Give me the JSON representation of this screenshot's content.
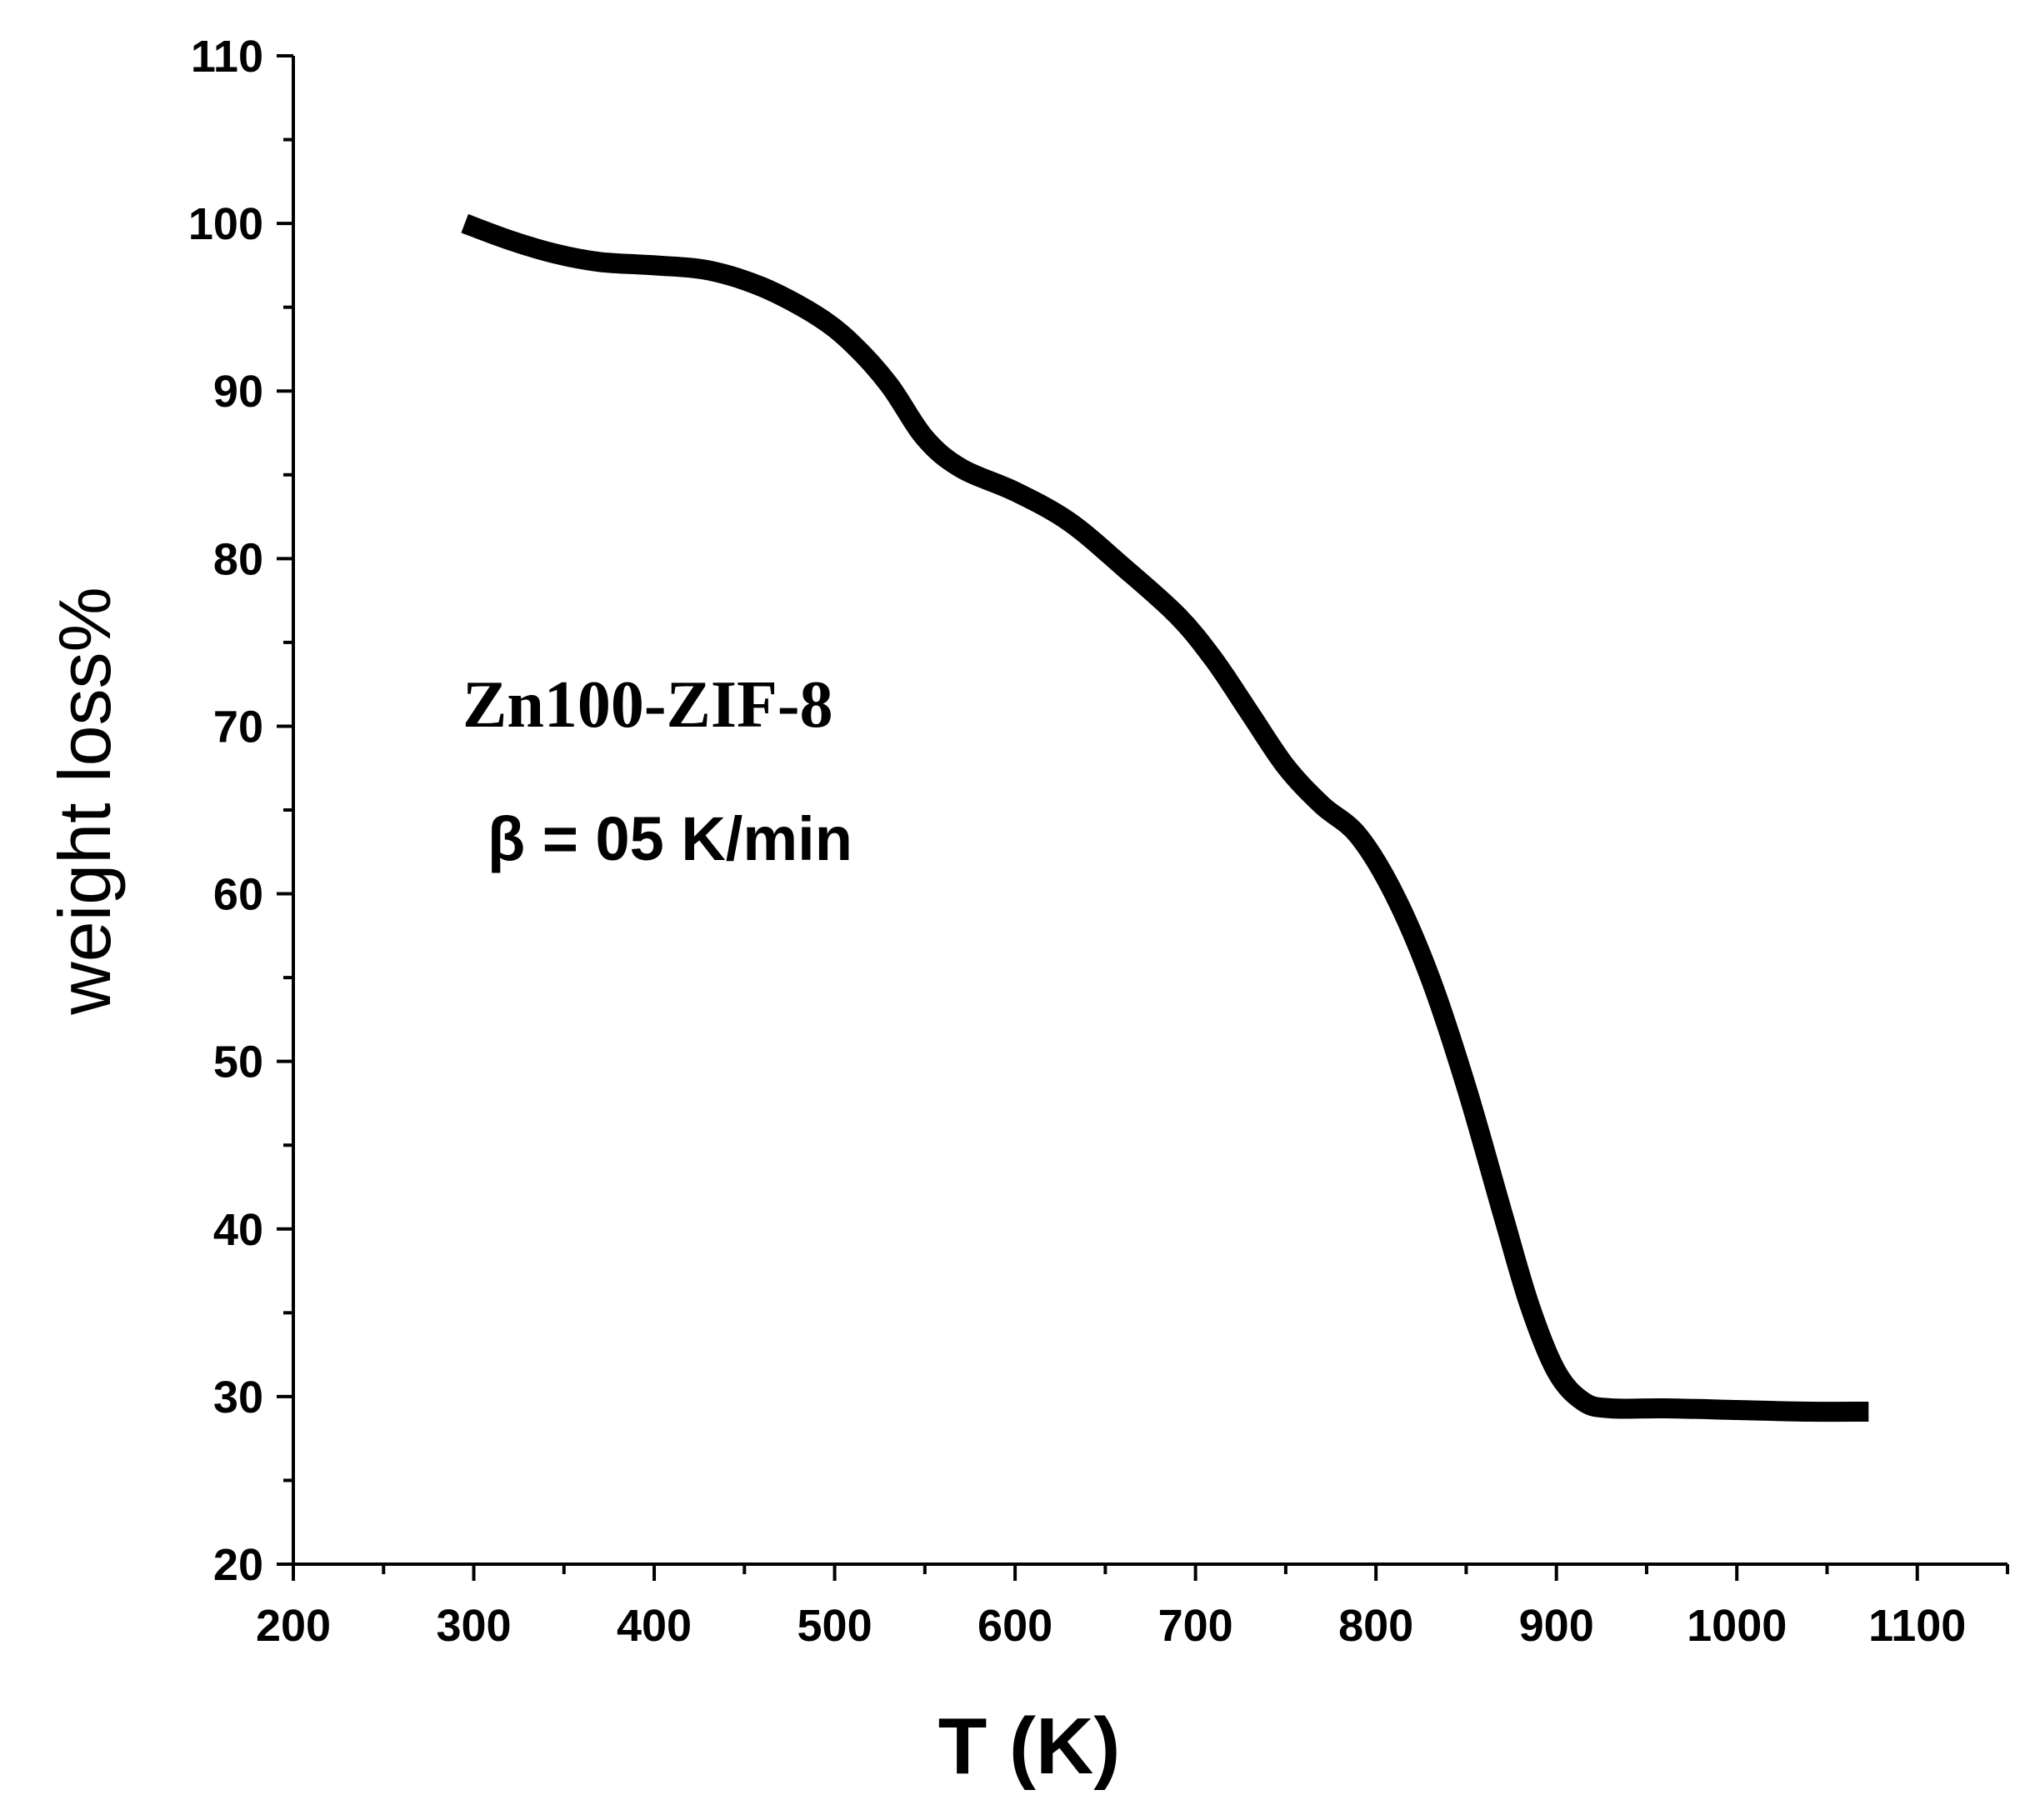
{
  "chart_data": {
    "type": "line",
    "xlabel": "T (K)",
    "ylabel": "weight loss%",
    "xlim": [
      200,
      1150
    ],
    "ylim": [
      20,
      110
    ],
    "x_ticks": [
      200,
      300,
      400,
      500,
      600,
      700,
      800,
      900,
      1000,
      1100
    ],
    "y_ticks": [
      20,
      30,
      40,
      50,
      60,
      70,
      80,
      90,
      100,
      110
    ],
    "grid": false,
    "annotations": [
      "Zn100-ZIF-8",
      "β = 05 K/min"
    ],
    "color": "#000000",
    "series": [
      {
        "x": [
          295,
          320,
          345,
          370,
          400,
          430,
          460,
          490,
          510,
          530,
          550,
          570,
          600,
          630,
          660,
          690,
          710,
          730,
          750,
          770,
          790,
          810,
          830,
          850,
          870,
          885,
          900,
          915,
          930,
          960,
          1000,
          1040,
          1073
        ],
        "y": [
          100,
          99.0,
          98.2,
          97.7,
          97.5,
          97.2,
          96.2,
          94.5,
          92.8,
          90.4,
          87.2,
          85.4,
          84.0,
          82.2,
          79.5,
          76.6,
          74.0,
          70.8,
          67.6,
          65.3,
          63.5,
          60.0,
          55.0,
          48.5,
          41.0,
          35.5,
          31.5,
          29.7,
          29.3,
          29.3,
          29.2,
          29.1,
          29.1
        ]
      }
    ]
  }
}
